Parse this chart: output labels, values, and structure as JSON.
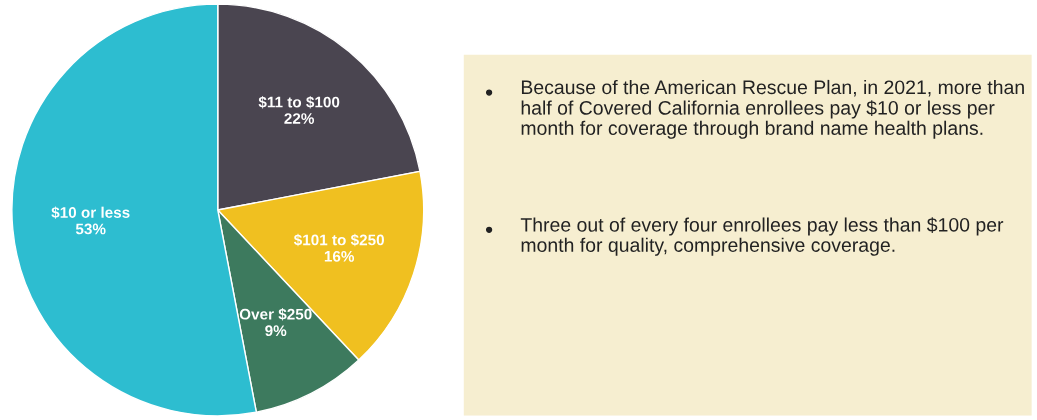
{
  "chart_data": [
    {
      "type": "pie",
      "categories": [
        "$11 to $100",
        "$101 to $250",
        "Over $250",
        "$10 or less"
      ],
      "values": [
        22,
        16,
        9,
        53
      ],
      "colors": [
        "#4a4550",
        "#f0c020",
        "#3d7a5e",
        "#2dbdd0"
      ],
      "value_labels": [
        "22%",
        "16%",
        "9%",
        "53%"
      ]
    },
    {
      "type": "other",
      "color": "#f6eed0",
      "annotations": [
        "Because of the American Rescue Plan, in 2021, more than half of Covered California enrollees pay $10 or less per month for coverage through brand name health plans.",
        "Three out of every four enrollees pay less than $100 per month for quality, comprehensive coverage."
      ]
    }
  ]
}
